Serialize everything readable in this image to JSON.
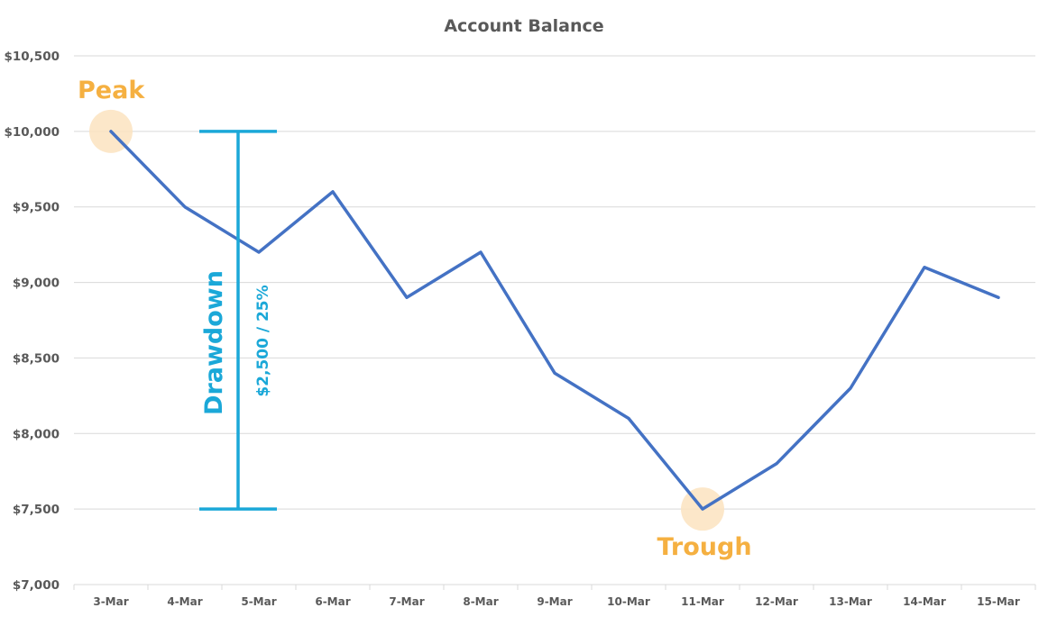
{
  "chart_data": {
    "type": "line",
    "title": "Account Balance",
    "xlabel": "",
    "ylabel": "",
    "categories": [
      "3-Mar",
      "4-Mar",
      "5-Mar",
      "6-Mar",
      "7-Mar",
      "8-Mar",
      "9-Mar",
      "10-Mar",
      "11-Mar",
      "12-Mar",
      "13-Mar",
      "14-Mar",
      "15-Mar"
    ],
    "series": [
      {
        "values": [
          10000,
          9500,
          9200,
          9600,
          8900,
          9200,
          8400,
          8100,
          7500,
          7800,
          8300,
          9100,
          8900
        ],
        "color": "#4472c4"
      }
    ],
    "ylim": [
      7000,
      10500
    ],
    "yticks": [
      7000,
      7500,
      8000,
      8500,
      9000,
      9500,
      10000,
      10500
    ],
    "ytick_labels": [
      "$7,000",
      "$7,500",
      "$8,000",
      "$8,500",
      "$9,000",
      "$9,500",
      "$10,000",
      "$10,500"
    ],
    "grid": true,
    "annotations": {
      "peak": {
        "label": "Peak",
        "category_index": 0,
        "value": 10000,
        "color": "#f5b041"
      },
      "trough": {
        "label": "Trough",
        "category_index": 8,
        "value": 7500,
        "color": "#f5b041"
      },
      "drawdown": {
        "label": "Drawdown",
        "value_label": "$2,500 / 25%",
        "from_value": 10000,
        "to_value": 7500,
        "color": "#1ba8d8"
      }
    }
  }
}
